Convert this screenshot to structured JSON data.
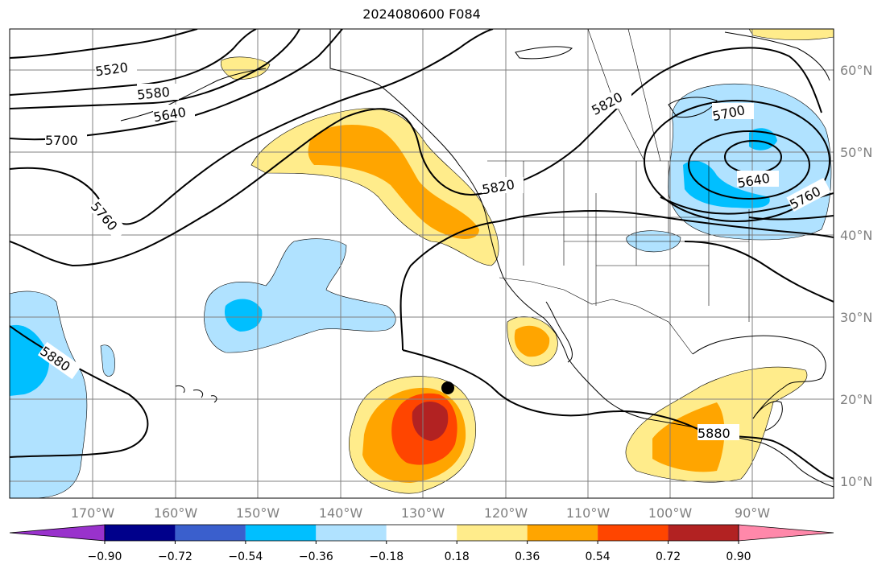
{
  "title": "2024080600 F084",
  "map": {
    "lat_labels": [
      "60°N",
      "50°N",
      "40°N",
      "30°N",
      "20°N",
      "10°N"
    ],
    "lon_labels": [
      "170°W",
      "160°W",
      "150°W",
      "140°W",
      "130°W",
      "120°W",
      "110°W",
      "100°W",
      "90°W"
    ],
    "contour_labels": [
      "5520",
      "5580",
      "5640",
      "5700",
      "5760",
      "5820",
      "5820",
      "5880",
      "5880",
      "5700",
      "5640",
      "5760"
    ],
    "marker": "storm-position-dot"
  },
  "colorbar": {
    "colors": [
      "#9932cc",
      "#00008b",
      "#3a5fcd",
      "#00bfff",
      "#b0e2ff",
      "#ffffff",
      "#ffec8b",
      "#ffa500",
      "#ff4500",
      "#b22222",
      "#ff88aa"
    ],
    "labels": [
      "−0.90",
      "−0.72",
      "−0.54",
      "−0.36",
      "−0.18",
      "0.18",
      "0.36",
      "0.54",
      "0.72",
      "0.90"
    ]
  }
}
